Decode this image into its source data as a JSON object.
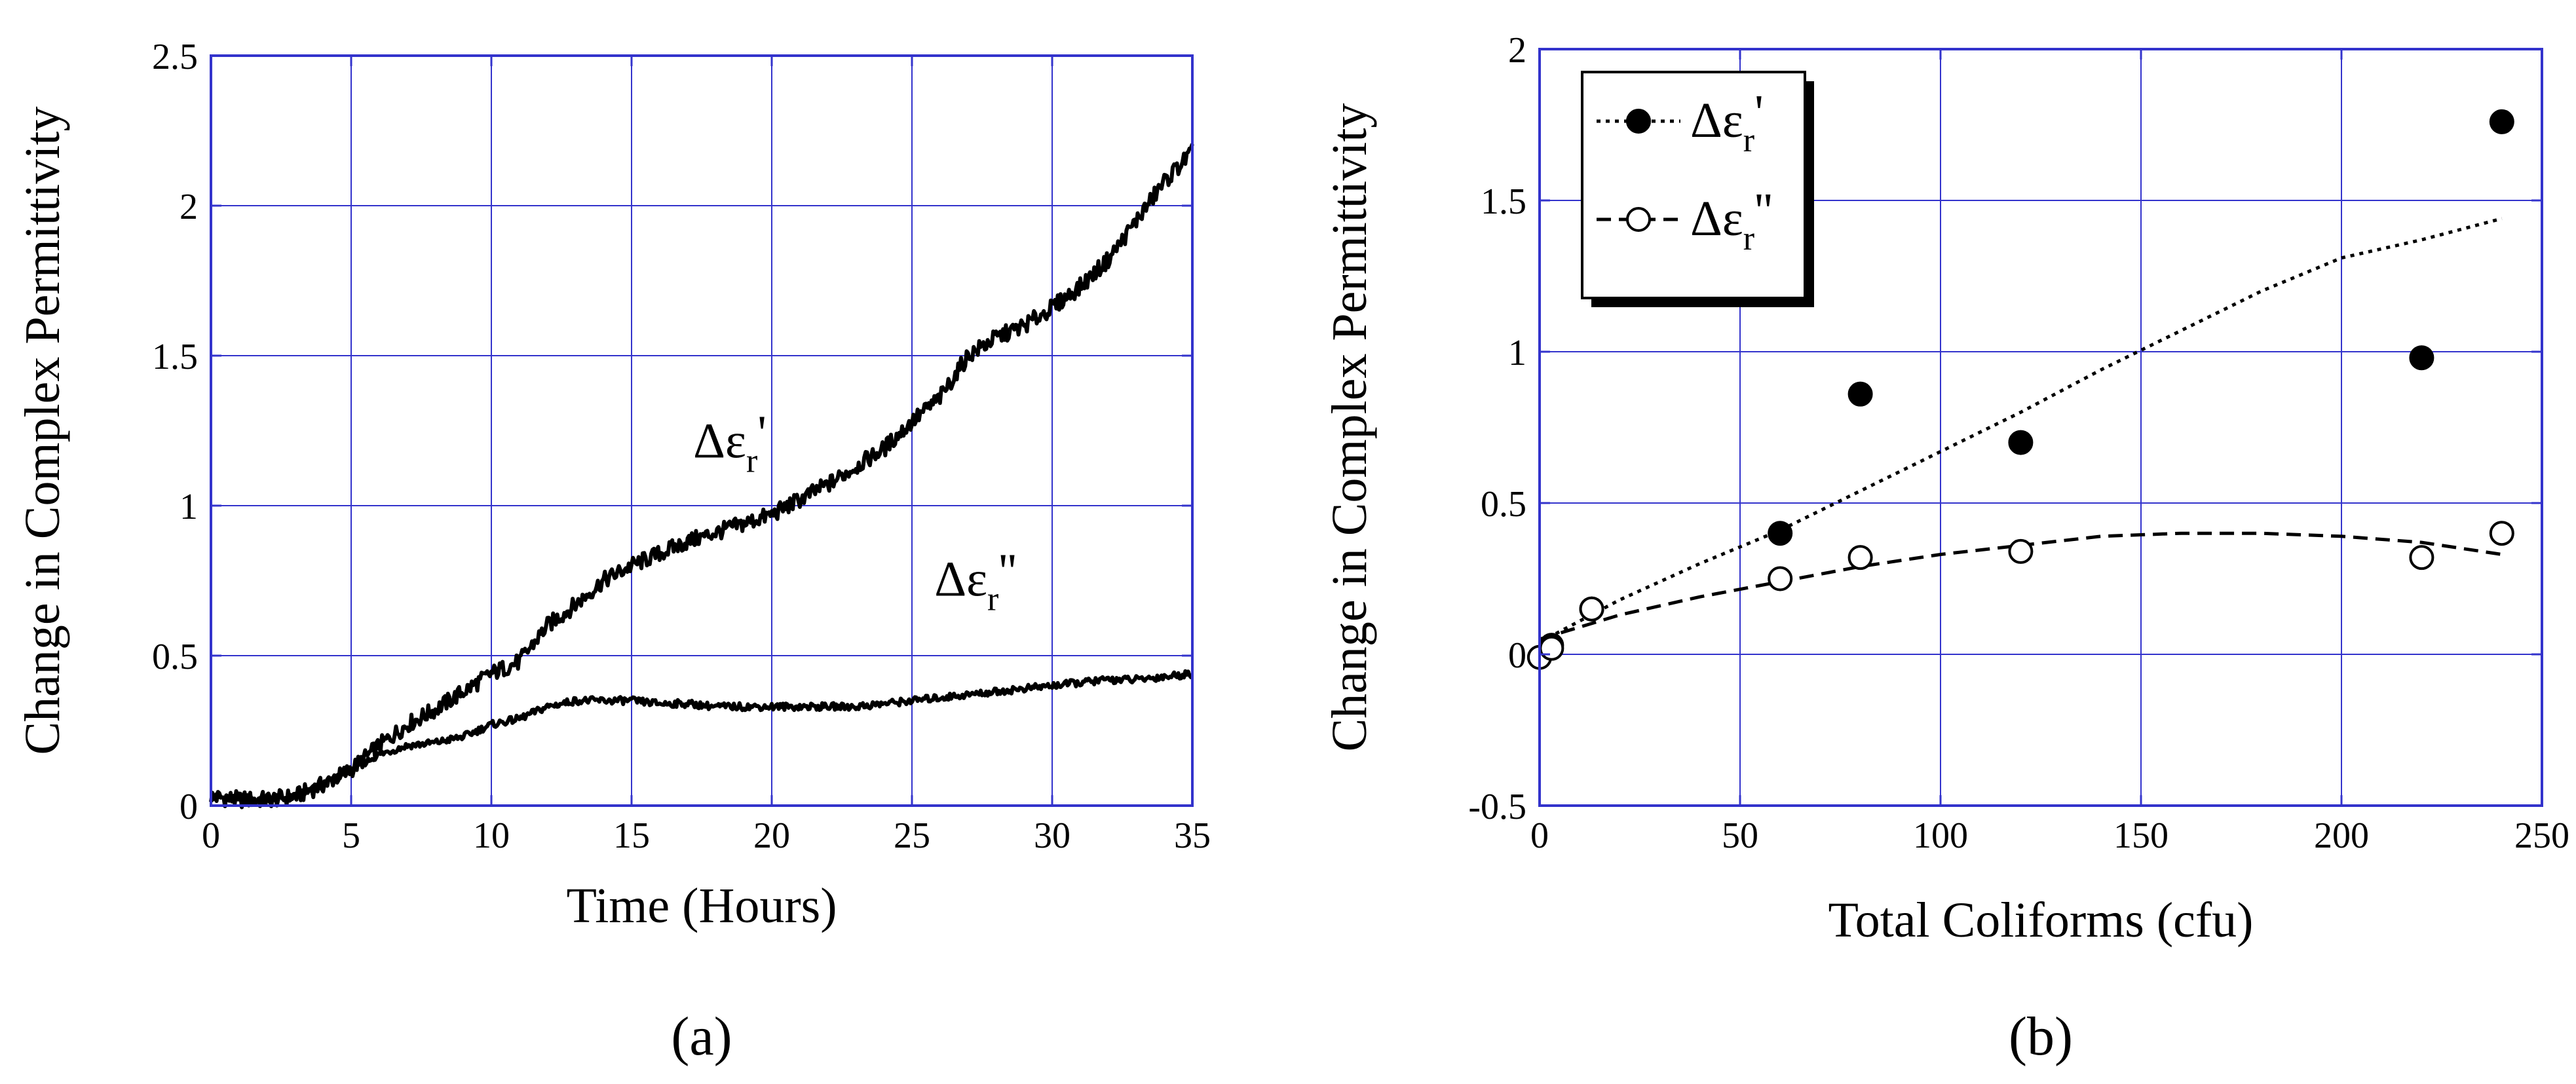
{
  "colors": {
    "grid": "#3333cc",
    "axis": "#3333cc",
    "line": "#000000",
    "background": "#ffffff"
  },
  "chart_data": [
    {
      "type": "line",
      "panel_label": "(a)",
      "title": "",
      "xlabel": "Time (Hours)",
      "ylabel": "Change in Complex Permittivity",
      "xlim": [
        0,
        35
      ],
      "ylim": [
        0,
        2.5
      ],
      "xticks": [
        0,
        5,
        10,
        15,
        20,
        25,
        30,
        35
      ],
      "yticks": [
        0,
        0.5,
        1,
        1.5,
        2,
        2.5
      ],
      "xtick_labels": [
        "0",
        "5",
        "10",
        "15",
        "20",
        "25",
        "30",
        "35"
      ],
      "ytick_labels": [
        "0",
        "0.5",
        "1",
        "1.5",
        "2",
        "2.5"
      ],
      "grid": true,
      "series": [
        {
          "name": "Δε_r'",
          "annotation": {
            "base": "Δε",
            "sub": "r",
            "prime": "'",
            "x": 17.2,
            "y": 1.16
          },
          "x": [
            0,
            1,
            2,
            3,
            4,
            5,
            6,
            7,
            8,
            9,
            10,
            11,
            12,
            13,
            14,
            15,
            16,
            17,
            18,
            19,
            20,
            21,
            22,
            23,
            24,
            25,
            26,
            27,
            28,
            29,
            30,
            31,
            32,
            33,
            34,
            35
          ],
          "values": [
            0.03,
            0.02,
            0.02,
            0.03,
            0.07,
            0.12,
            0.2,
            0.27,
            0.32,
            0.38,
            0.44,
            0.48,
            0.6,
            0.67,
            0.75,
            0.8,
            0.84,
            0.88,
            0.91,
            0.94,
            0.97,
            1.02,
            1.07,
            1.13,
            1.19,
            1.28,
            1.36,
            1.5,
            1.56,
            1.6,
            1.66,
            1.73,
            1.82,
            1.95,
            2.08,
            2.18
          ]
        },
        {
          "name": "Δε_r''",
          "annotation": {
            "base": "Δε",
            "sub": "r",
            "prime": "''",
            "x": 25.8,
            "y": 0.7
          },
          "x": [
            0,
            1,
            2,
            3,
            4,
            5,
            6,
            7,
            8,
            9,
            10,
            11,
            12,
            13,
            14,
            15,
            16,
            17,
            18,
            19,
            20,
            21,
            22,
            23,
            24,
            25,
            26,
            27,
            28,
            29,
            30,
            31,
            32,
            33,
            34,
            35
          ],
          "values": [
            0.03,
            0.02,
            0.02,
            0.03,
            0.07,
            0.12,
            0.17,
            0.2,
            0.21,
            0.23,
            0.27,
            0.29,
            0.33,
            0.35,
            0.35,
            0.35,
            0.34,
            0.34,
            0.33,
            0.33,
            0.33,
            0.33,
            0.33,
            0.33,
            0.34,
            0.35,
            0.36,
            0.37,
            0.38,
            0.39,
            0.4,
            0.41,
            0.42,
            0.42,
            0.43,
            0.44
          ]
        }
      ]
    },
    {
      "type": "scatter",
      "panel_label": "(b)",
      "title": "",
      "xlabel": "Total Coliforms (cfu)",
      "ylabel": "Change in Complex Permittivity",
      "xlim": [
        0,
        250
      ],
      "ylim": [
        -0.5,
        2
      ],
      "xticks": [
        0,
        50,
        100,
        150,
        200,
        250
      ],
      "yticks": [
        -0.5,
        0,
        0.5,
        1,
        1.5,
        2
      ],
      "xtick_labels": [
        "0",
        "50",
        "100",
        "150",
        "200",
        "250"
      ],
      "ytick_labels": [
        "-0.5",
        "0",
        "0.5",
        "1",
        "1.5",
        "2"
      ],
      "grid": true,
      "legend": {
        "position": "top-left",
        "entries": [
          {
            "base": "Δε",
            "sub": "r",
            "prime": "'"
          },
          {
            "base": "Δε",
            "sub": "r",
            "prime": "''"
          }
        ]
      },
      "series": [
        {
          "name": "Δε_r'",
          "marker": "filled-circle",
          "x": [
            0,
            3,
            13,
            60,
            80,
            120,
            220,
            240
          ],
          "values": [
            -0.01,
            0.03,
            0.15,
            0.4,
            0.86,
            0.7,
            0.98,
            1.76
          ],
          "fit_line": {
            "style": "dotted",
            "x": [
              0,
              20,
              40,
              60,
              80,
              100,
              120,
              140,
              160,
              180,
              200,
              220,
              240
            ],
            "values": [
              0.04,
              0.18,
              0.3,
              0.41,
              0.54,
              0.67,
              0.8,
              0.94,
              1.07,
              1.2,
              1.31,
              1.37,
              1.44
            ]
          }
        },
        {
          "name": "Δε_r''",
          "marker": "open-circle",
          "x": [
            0,
            3,
            13,
            60,
            80,
            120,
            220,
            240
          ],
          "values": [
            -0.01,
            0.02,
            0.15,
            0.25,
            0.32,
            0.34,
            0.32,
            0.4
          ],
          "fit_line": {
            "style": "dashed",
            "x": [
              0,
              20,
              40,
              60,
              80,
              100,
              120,
              140,
              160,
              180,
              200,
              220,
              240
            ],
            "values": [
              0.05,
              0.13,
              0.19,
              0.24,
              0.29,
              0.33,
              0.36,
              0.39,
              0.4,
              0.4,
              0.39,
              0.37,
              0.33
            ]
          }
        }
      ]
    }
  ]
}
